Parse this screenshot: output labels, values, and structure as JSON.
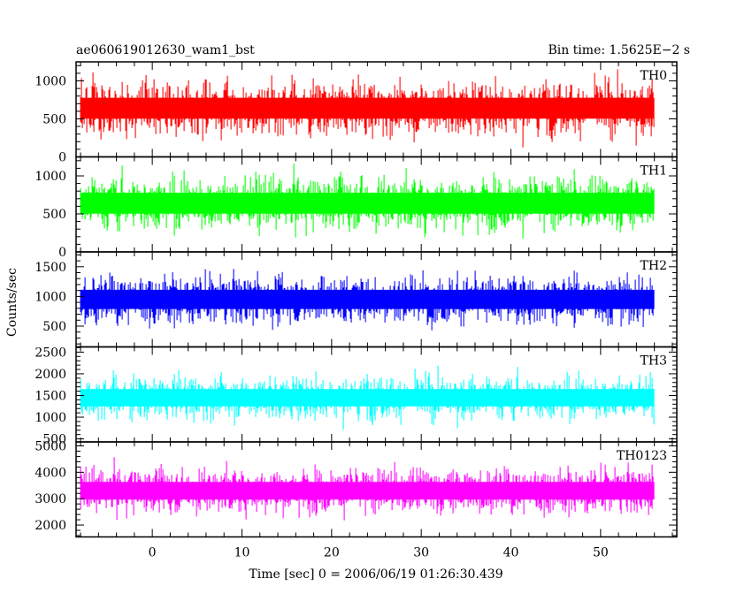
{
  "chart_data": {
    "type": "line",
    "title_left": "ae060619012630_wam1_bst",
    "title_right": "Bin time: 1.5625E−2 s",
    "xlabel": "Time [sec] 0 = 2006/06/19 01:26:30.439",
    "ylabel": "Counts/sec",
    "xlim": [
      -8.5,
      58.5
    ],
    "data_x_range": [
      -8.0,
      56.0
    ],
    "x_ticks": [
      0,
      10,
      20,
      30,
      40,
      50
    ],
    "x_tick_labels": [
      "0",
      "10",
      "20",
      "30",
      "40",
      "50"
    ],
    "grid": false,
    "panels": [
      {
        "name": "TH0",
        "color": "#ff0000",
        "ylim": [
          0,
          1250
        ],
        "y_ticks": [
          0,
          500,
          1000
        ],
        "y_tick_labels": [
          "0",
          "500",
          "1000"
        ],
        "mean": 640,
        "sigma": 230,
        "min": 80,
        "max": 1250
      },
      {
        "name": "TH1",
        "color": "#00ff00",
        "ylim": [
          0,
          1250
        ],
        "y_ticks": [
          0,
          500,
          1000
        ],
        "y_tick_labels": [
          "0",
          "500",
          "1000"
        ],
        "mean": 640,
        "sigma": 230,
        "min": 80,
        "max": 1250
      },
      {
        "name": "TH2",
        "color": "#0000ff",
        "ylim": [
          150,
          1750
        ],
        "y_ticks": [
          500,
          1000,
          1500
        ],
        "y_tick_labels": [
          "500",
          "1000",
          "1500"
        ],
        "mean": 950,
        "sigma": 270,
        "min": 200,
        "max": 1750
      },
      {
        "name": "TH3",
        "color": "#00ffff",
        "ylim": [
          430,
          2620
        ],
        "y_ticks": [
          500,
          1000,
          1500,
          2000,
          2500
        ],
        "y_tick_labels": [
          "500",
          "1000",
          "1500",
          "2000",
          "2500"
        ],
        "mean": 1450,
        "sigma": 330,
        "min": 480,
        "max": 2620
      },
      {
        "name": "TH0123",
        "color": "#ff00ff",
        "ylim": [
          1550,
          5150
        ],
        "y_ticks": [
          2000,
          3000,
          4000,
          5000
        ],
        "y_tick_labels": [
          "2000",
          "3000",
          "4000",
          "5000"
        ],
        "mean": 3300,
        "sigma": 560,
        "min": 1600,
        "max": 5100
      }
    ]
  }
}
